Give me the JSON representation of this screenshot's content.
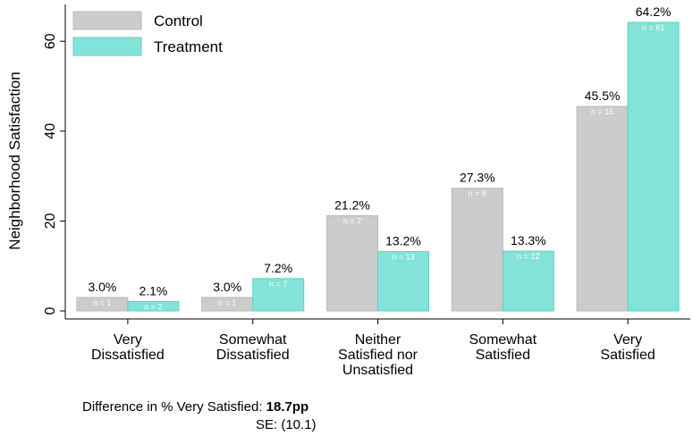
{
  "chart_data": {
    "type": "bar",
    "ylabel": "Neighborhood Satisfaction",
    "ylim": [
      0,
      68
    ],
    "yticks": [
      0,
      20,
      40,
      60
    ],
    "categories": [
      [
        "Very",
        "Dissatisfied"
      ],
      [
        "Somewhat",
        "Dissatisfied"
      ],
      [
        "Neither",
        "Satisfied nor",
        "Unsatisfied"
      ],
      [
        "Somewhat",
        "Satisfied"
      ],
      [
        "Very",
        "Satisfied"
      ]
    ],
    "series": [
      {
        "name": "Control",
        "color": "#cccccc",
        "values": [
          3.0,
          3.0,
          21.2,
          27.3,
          45.5
        ],
        "labels": [
          "3.0%",
          "3.0%",
          "21.2%",
          "27.3%",
          "45.5%"
        ],
        "n_labels": [
          "n = 1",
          "n = 1",
          "n = 7",
          "n = 9",
          "n = 15"
        ]
      },
      {
        "name": "Treatment",
        "color": "#84e3d8",
        "values": [
          2.1,
          7.2,
          13.2,
          13.3,
          64.2
        ],
        "labels": [
          "2.1%",
          "7.2%",
          "13.2%",
          "13.3%",
          "64.2%"
        ],
        "n_labels": [
          "n = 2",
          "n = 7",
          "n = 13",
          "n = 12",
          "n = 61"
        ]
      }
    ],
    "legend_position": "top-left",
    "grid": false
  },
  "footnote": {
    "difference_label": "Difference in % Very Satisfied: ",
    "difference_value": "18.7pp",
    "se_label": "SE: (10.1)"
  }
}
